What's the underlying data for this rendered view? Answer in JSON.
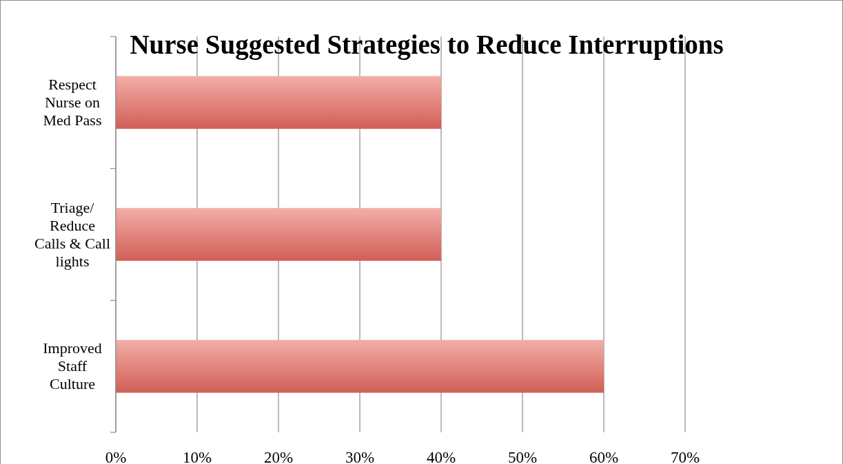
{
  "chart_data": {
    "type": "bar",
    "orientation": "horizontal",
    "title": "Nurse Suggested Strategies to Reduce Interruptions",
    "categories": [
      "Respect Nurse on Med Pass",
      "Triage/ Reduce Calls & Call lights",
      "Improved Staff Culture"
    ],
    "values": [
      0.4,
      0.4,
      0.6
    ],
    "color": "#e96a60",
    "xlim": [
      0,
      0.7
    ],
    "xticks": [
      {
        "value": 0,
        "label": "0%"
      },
      {
        "value": 0.1,
        "label": "10%"
      },
      {
        "value": 0.2,
        "label": "20%"
      },
      {
        "value": 0.3,
        "label": "30%"
      },
      {
        "value": 0.4,
        "label": "40%"
      },
      {
        "value": 0.5,
        "label": "50%"
      },
      {
        "value": 0.6,
        "label": "60%"
      },
      {
        "value": 0.7,
        "label": "70%"
      }
    ],
    "grid": "x"
  }
}
